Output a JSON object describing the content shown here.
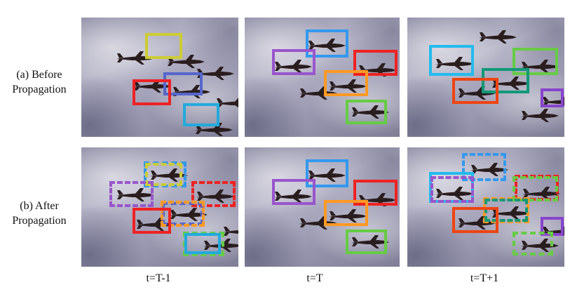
{
  "row_labels": [
    {
      "line1": "(a) Before",
      "line2": "Propagation"
    },
    {
      "line1": "(b) After",
      "line2": "Propagation"
    }
  ],
  "column_labels": [
    "t=T-1",
    "t=T",
    "t=T+1"
  ],
  "colors": {
    "yellow": "#cccc33",
    "blue": "#3399ee",
    "indigo": "#5566cc",
    "red": "#ee2222",
    "cyan": "#22aadd",
    "purple": "#9955cc",
    "orange": "#ff9922",
    "green": "#66cc44",
    "teal": "#119977",
    "orange_red": "#ee4411",
    "violet": "#8844cc",
    "sky": "#22bbee"
  }
}
